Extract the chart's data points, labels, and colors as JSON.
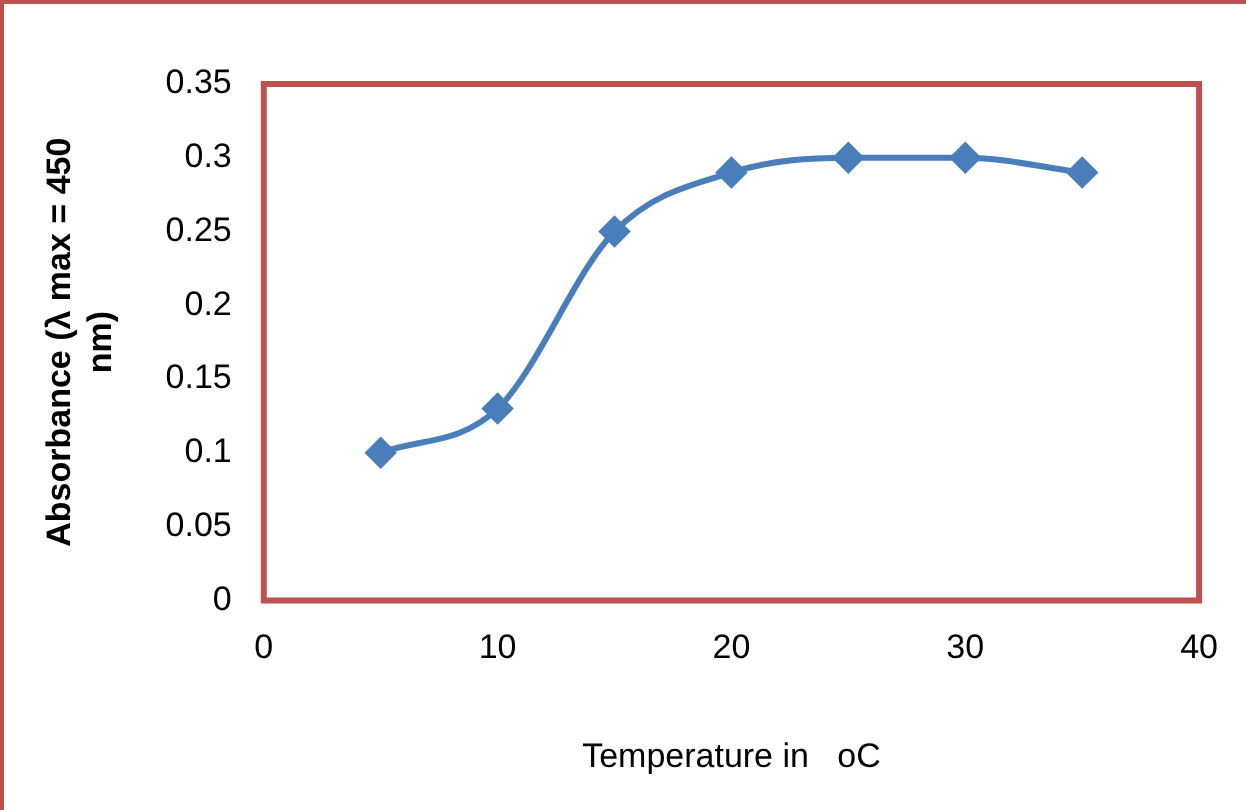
{
  "chart_data": {
    "type": "line",
    "xlabel": "Temperature in   oC",
    "ylabel": "Absorbance (λ max = 450 nm)",
    "x": [
      5,
      10,
      15,
      20,
      25,
      30,
      35
    ],
    "series": [
      {
        "color": "#4a7ebb",
        "values": [
          0.1,
          0.13,
          0.25,
          0.29,
          0.3,
          0.3,
          0.29
        ]
      }
    ],
    "xlim": [
      0,
      40
    ],
    "xticks": [
      0,
      10,
      20,
      30,
      40
    ],
    "ylim": [
      0,
      0.35
    ],
    "yticks": [
      0,
      0.05,
      0.1,
      0.15,
      0.2,
      0.25,
      0.3,
      0.35
    ],
    "grid": false,
    "legend": false,
    "marker": "diamond",
    "line_style": "solid"
  }
}
